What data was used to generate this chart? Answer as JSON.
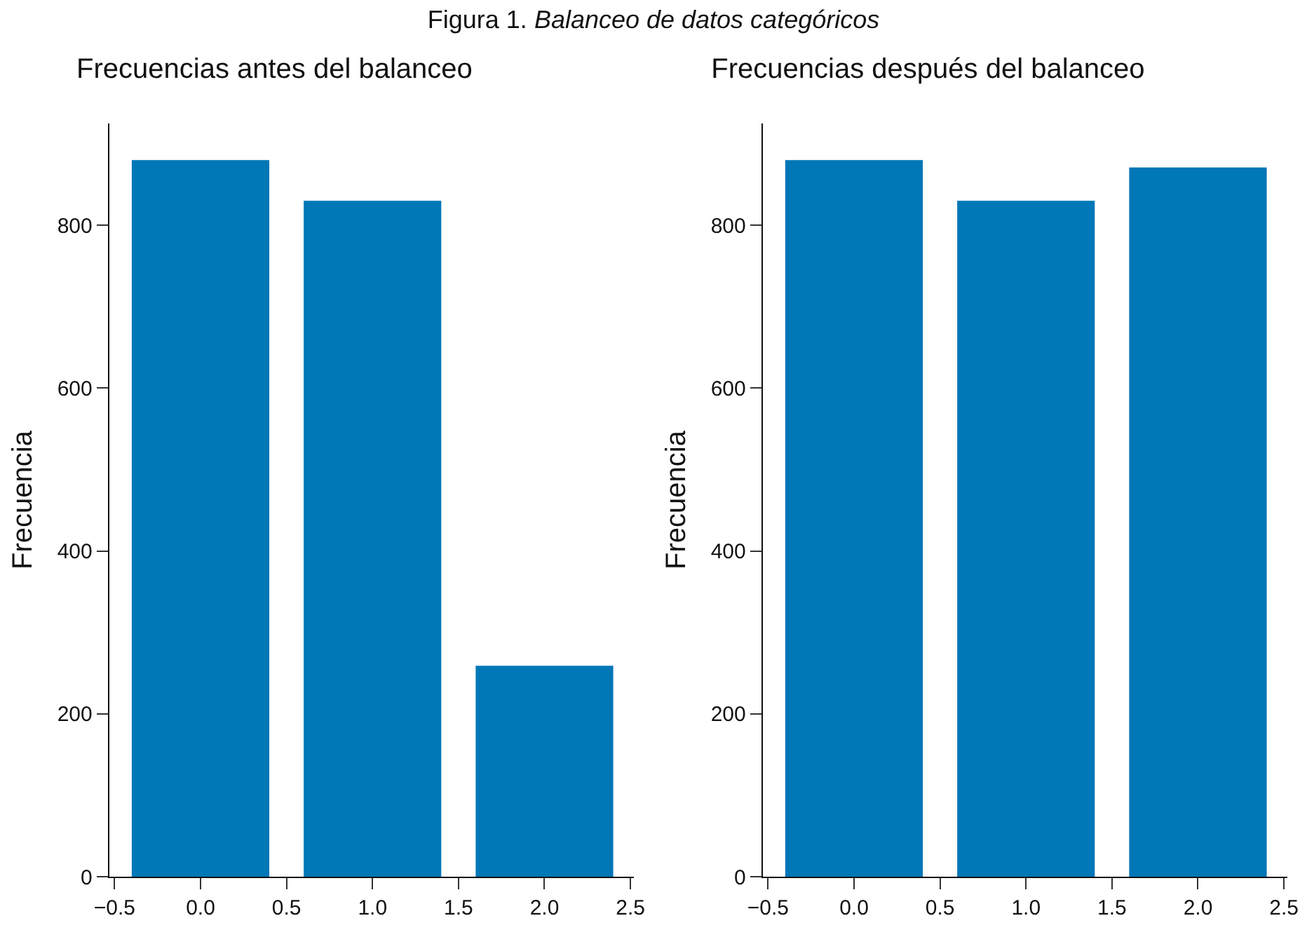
{
  "chart_data": [
    {
      "type": "bar",
      "title": "Frecuencias antes del balanceo",
      "ylabel": "Frecuencia",
      "annotations": [
        "Figura 1. Balanceo de datos categóricos"
      ],
      "x": [
        0,
        1,
        2
      ],
      "values": [
        880,
        830,
        259
      ],
      "color": "#0077b6",
      "xlim": [
        -0.53,
        2.52
      ],
      "xticks": [
        {
          "value": -0.5,
          "label": "−0.5"
        },
        {
          "value": 0,
          "label": "0.0"
        },
        {
          "value": 0.5,
          "label": "0.5"
        },
        {
          "value": 1,
          "label": "1.0"
        },
        {
          "value": 1.5,
          "label": "1.5"
        },
        {
          "value": 2,
          "label": "2.0"
        },
        {
          "value": 2.5,
          "label": "2.5"
        }
      ],
      "ylim": [
        0,
        925
      ],
      "yticks": [
        0,
        200,
        400,
        600,
        800
      ],
      "grid": false
    },
    {
      "type": "bar",
      "title": "Frecuencias después del balanceo",
      "ylabel": "Frecuencia",
      "x": [
        0,
        1,
        2
      ],
      "values": [
        880,
        830,
        871
      ],
      "color": "#0077b6",
      "xlim": [
        -0.53,
        2.52
      ],
      "xticks": [
        {
          "value": -0.5,
          "label": "−0.5"
        },
        {
          "value": 0,
          "label": "0.0"
        },
        {
          "value": 0.5,
          "label": "0.5"
        },
        {
          "value": 1,
          "label": "1.0"
        },
        {
          "value": 1.5,
          "label": "1.5"
        },
        {
          "value": 2,
          "label": "2.0"
        },
        {
          "value": 2.5,
          "label": "2.5"
        }
      ],
      "ylim": [
        0,
        925
      ],
      "yticks": [
        0,
        200,
        400,
        600,
        800
      ],
      "grid": false
    }
  ]
}
